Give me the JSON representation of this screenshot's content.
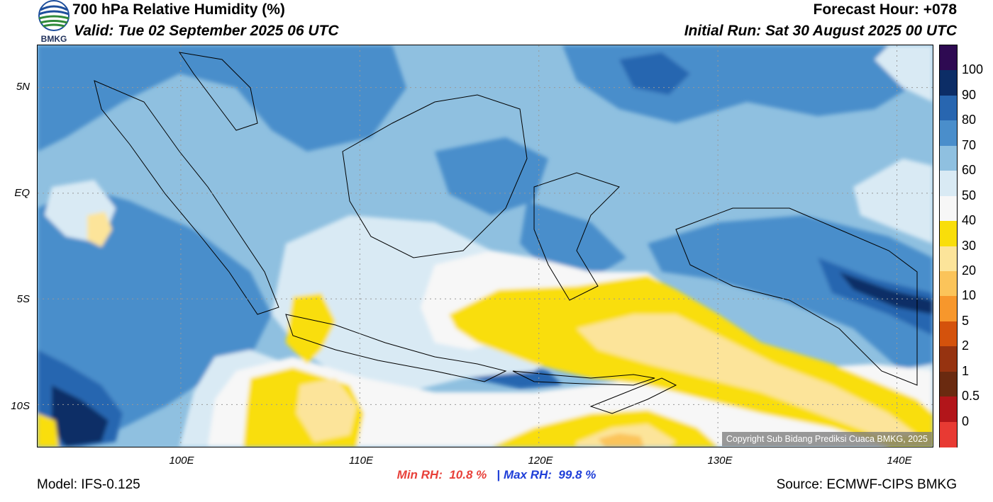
{
  "header": {
    "title": "700 hPa Relative Humidity (%)",
    "valid": "Valid: Tue 02 September 2025 06 UTC",
    "forecast_hour": "Forecast Hour: +078",
    "initial_run": "Initial Run: Sat 30 August 2025 00 UTC"
  },
  "logo": {
    "text": "BMKG",
    "icon": "bmkg-logo-icon"
  },
  "axes": {
    "lat_labels": [
      "5N",
      "EQ",
      "5S",
      "10S"
    ],
    "lon_labels": [
      "100E",
      "110E",
      "120E",
      "130E",
      "140E"
    ],
    "lat_values": [
      5,
      0,
      -5,
      -10
    ],
    "lon_values": [
      100,
      110,
      120,
      130,
      140
    ],
    "extent": {
      "lon_min": 92,
      "lon_max": 142,
      "lat_min": -12,
      "lat_max": 7
    },
    "grid": true
  },
  "stats": {
    "min_label": "Min RH:",
    "min_value": "10.8 %",
    "separator": "|",
    "max_label": "Max RH:",
    "max_value": "99.8 %"
  },
  "footer": {
    "model": "Model: IFS-0.125",
    "source": "Source: ECMWF-CIPS BMKG",
    "copyright": "Copyright Sub Bidang Prediksi Cuaca BMKG, 2025"
  },
  "colorbar": {
    "labels": [
      "100",
      "90",
      "80",
      "70",
      "60",
      "50",
      "40",
      "30",
      "20",
      "10",
      "5",
      "2",
      "1",
      "0.5",
      "0"
    ],
    "colors": [
      "#2e0a52",
      "#0c2d66",
      "#2866b0",
      "#4a8ecb",
      "#8fc0e0",
      "#d9eaf4",
      "#f7f7f7",
      "#f9de0a",
      "#fce49a",
      "#fbc45a",
      "#f7972c",
      "#d4520c",
      "#963310",
      "#6a2a10",
      "#b2151a",
      "#e83a33"
    ]
  },
  "colors": {
    "min_rh": "#e8413a",
    "max_rh": "#1f3fd8"
  }
}
